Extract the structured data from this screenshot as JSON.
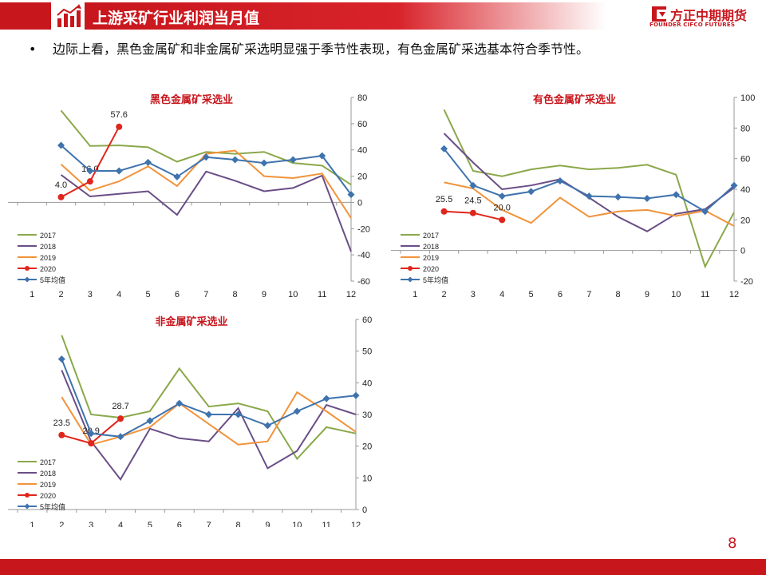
{
  "page": {
    "title": "上游采矿行业利润当月值",
    "bullet": "边际上看，黑色金属矿和非金属矿采选明显强于季节性表现，有色金属矿采选基本符合季节性。",
    "page_number": "8",
    "brand_name": "方正中期期货",
    "brand_sub": "FOUNDER CIFCO FUTURES"
  },
  "colors": {
    "accent": "#c8161d",
    "s2017": "#8aa84a",
    "s2018": "#6a4e86",
    "s2019": "#f2933a",
    "s2020": "#e0251c",
    "avg5": "#3f73ad"
  },
  "chart_data": [
    {
      "type": "line",
      "title": "黑色金属矿采选业",
      "x": [
        1,
        2,
        3,
        4,
        5,
        6,
        7,
        8,
        9,
        10,
        11,
        12
      ],
      "ylim": [
        -60,
        80
      ],
      "yticks": [
        -60,
        -40,
        -20,
        0,
        20,
        40,
        60,
        80
      ],
      "legend_position": "bottom-left",
      "series": [
        {
          "name": "2017",
          "values": [
            null,
            70,
            43,
            43.5,
            42,
            31,
            38.5,
            37,
            38.5,
            30,
            28,
            13.5
          ]
        },
        {
          "name": "2018",
          "values": [
            null,
            21,
            4.5,
            6.5,
            8.5,
            -9.5,
            23.5,
            16.5,
            8.5,
            11,
            20.5,
            -37.5
          ]
        },
        {
          "name": "2019",
          "values": [
            null,
            29,
            9,
            16,
            27.5,
            12.5,
            37,
            39.5,
            20,
            18.5,
            22,
            -12
          ]
        },
        {
          "name": "2020",
          "values": [
            null,
            4.0,
            16.0,
            57.6,
            null,
            null,
            null,
            null,
            null,
            null,
            null,
            null
          ],
          "labels": [
            "4.0",
            "16.0",
            "57.6"
          ]
        },
        {
          "name": "5年均值",
          "values": [
            null,
            43.5,
            24,
            24,
            30.5,
            19.5,
            34.5,
            32.5,
            30,
            32.5,
            35.5,
            6
          ]
        }
      ]
    },
    {
      "type": "line",
      "title": "有色金属矿采选业",
      "x": [
        1,
        2,
        3,
        4,
        5,
        6,
        7,
        8,
        9,
        10,
        11,
        12
      ],
      "ylim": [
        -20,
        100
      ],
      "yticks": [
        -20,
        0,
        20,
        40,
        60,
        80,
        100
      ],
      "legend_position": "bottom-left",
      "series": [
        {
          "name": "2017",
          "values": [
            null,
            92,
            52,
            48.5,
            53,
            55.5,
            53,
            54,
            56,
            49.5,
            -10.5,
            25
          ]
        },
        {
          "name": "2018",
          "values": [
            null,
            76.5,
            57.5,
            40,
            42.5,
            46.5,
            34.5,
            22,
            12.5,
            24,
            27,
            41
          ]
        },
        {
          "name": "2019",
          "values": [
            null,
            44.5,
            40.5,
            26.5,
            18,
            34.5,
            22,
            25.5,
            26.5,
            22.5,
            26,
            16
          ]
        },
        {
          "name": "2020",
          "values": [
            null,
            25.5,
            24.5,
            20.0,
            null,
            null,
            null,
            null,
            null,
            null,
            null,
            null
          ],
          "labels": [
            "25.5",
            "24.5",
            "20.0"
          ]
        },
        {
          "name": "5年均值",
          "values": [
            null,
            66.5,
            42.5,
            35.5,
            38.5,
            45.5,
            35.5,
            35,
            34,
            36.5,
            25.5,
            42.5
          ]
        }
      ]
    },
    {
      "type": "line",
      "title": "非金属矿采选业",
      "x": [
        1,
        2,
        3,
        4,
        5,
        6,
        7,
        8,
        9,
        10,
        11,
        12
      ],
      "ylim": [
        0,
        60
      ],
      "yticks": [
        0,
        10,
        20,
        30,
        40,
        50,
        60
      ],
      "legend_position": "bottom-left",
      "series": [
        {
          "name": "2017",
          "values": [
            null,
            55,
            30,
            29,
            31,
            44.5,
            32.5,
            33.5,
            31,
            16,
            26,
            24
          ]
        },
        {
          "name": "2018",
          "values": [
            null,
            44,
            21.5,
            9.5,
            25.5,
            22.5,
            21.5,
            32,
            13,
            18.5,
            33,
            30
          ]
        },
        {
          "name": "2019",
          "values": [
            null,
            35.5,
            20.5,
            23,
            26,
            33.5,
            27,
            20.5,
            21.5,
            37,
            31,
            24.5
          ]
        },
        {
          "name": "2020",
          "values": [
            null,
            23.5,
            20.9,
            28.7,
            null,
            null,
            null,
            null,
            null,
            null,
            null,
            null
          ],
          "labels": [
            "23.5",
            "20.9",
            "28.7"
          ]
        },
        {
          "name": "5年均值",
          "values": [
            null,
            47.5,
            24,
            23,
            28,
            33.5,
            30,
            30,
            26.5,
            31,
            35,
            36
          ]
        }
      ]
    }
  ]
}
